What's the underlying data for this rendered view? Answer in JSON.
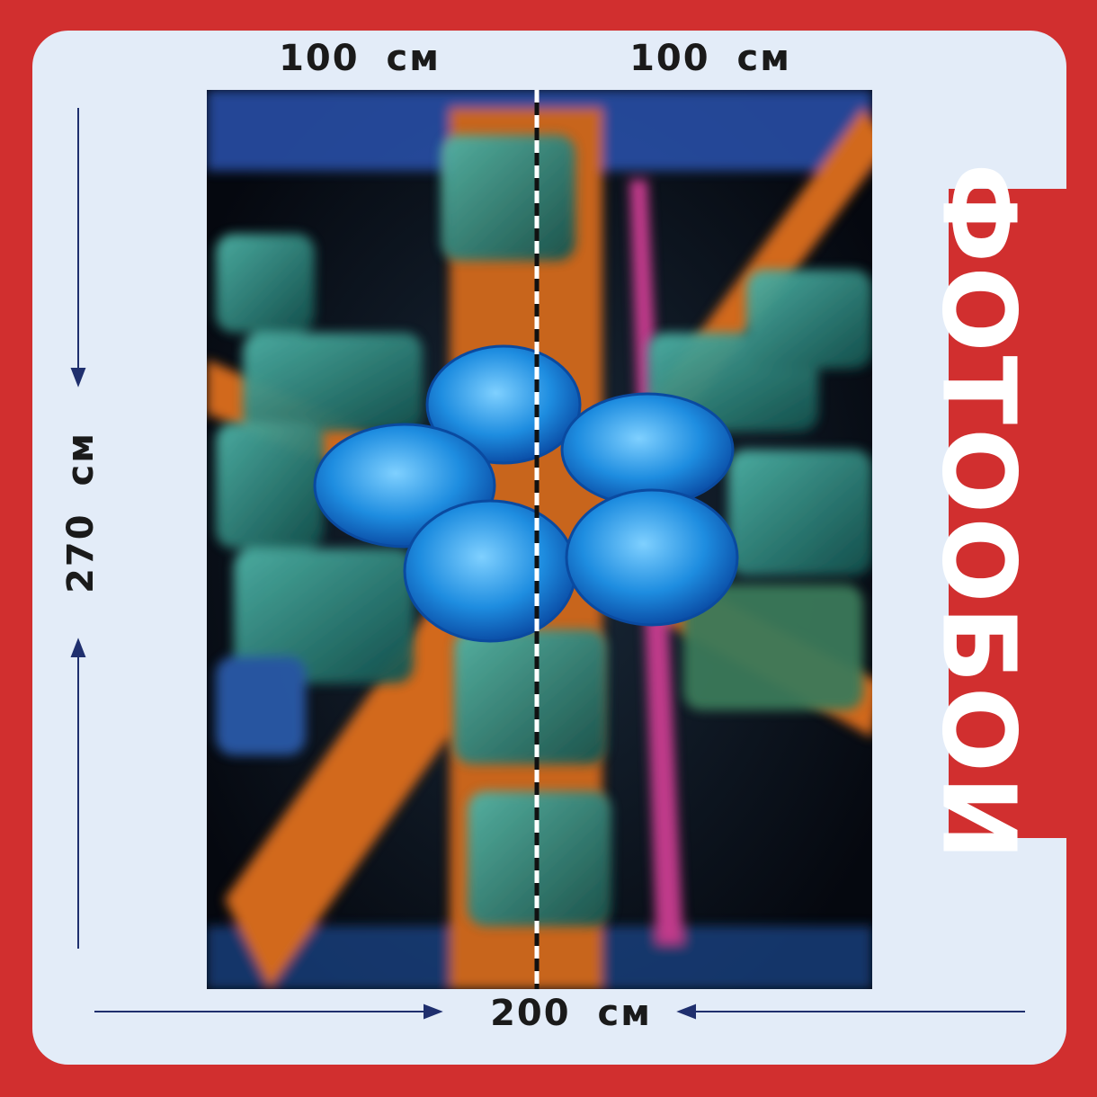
{
  "labels": {
    "top_left": "100 см",
    "top_right": "100 см",
    "height": "270 см",
    "width": "200 см"
  },
  "brand": "ФОТООБОИ"
}
